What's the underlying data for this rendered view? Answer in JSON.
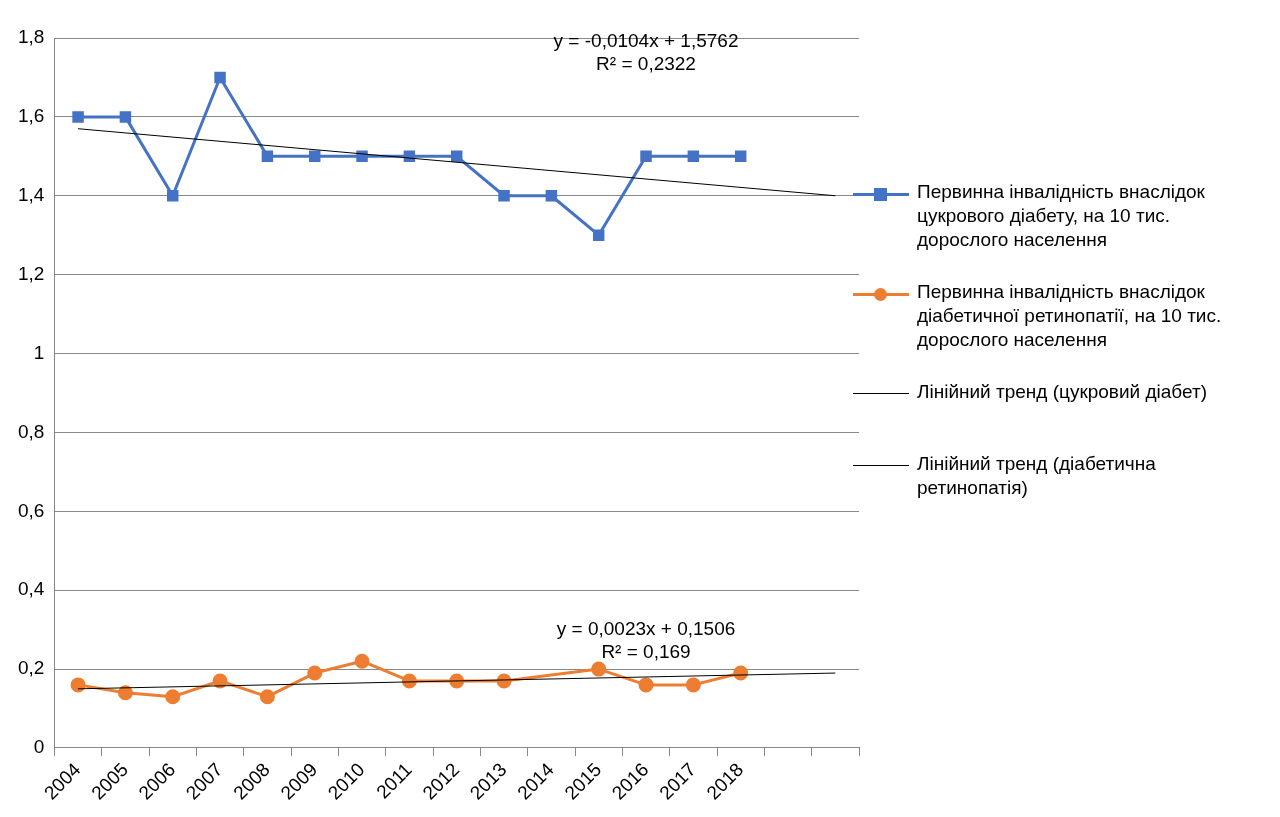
{
  "chart_data": {
    "type": "line",
    "categories": [
      "2004",
      "2005",
      "2006",
      "2007",
      "2008",
      "2009",
      "2010",
      "2011",
      "2012",
      "2013",
      "2014",
      "2015",
      "2016",
      "2017",
      "2018",
      null,
      null
    ],
    "series": [
      {
        "name": "Первинна інвалідність внаслідок цукрового діабету, на 10 тис. дорослого населення",
        "color": "#4472c4",
        "marker": "square",
        "values": [
          1.6,
          1.6,
          1.4,
          1.7,
          1.5,
          1.5,
          1.5,
          1.5,
          1.5,
          1.4,
          1.4,
          1.3,
          1.5,
          1.5,
          1.5,
          null,
          null
        ]
      },
      {
        "name": "Первинна інвалідність внаслідок діабетичної ретинопатії, на 10 тис. дорослого населення",
        "color": "#ed7d31",
        "marker": "circle",
        "values": [
          0.16,
          0.14,
          0.13,
          0.17,
          0.13,
          0.19,
          0.22,
          0.17,
          0.17,
          0.17,
          null,
          0.2,
          0.16,
          0.16,
          0.19,
          null,
          null
        ]
      },
      {
        "name": "Лінійний тренд (цукровий діабет)",
        "color": "#000000",
        "marker": "none",
        "values": [
          1.57,
          null,
          null,
          null,
          null,
          null,
          null,
          null,
          null,
          null,
          null,
          null,
          null,
          null,
          null,
          null,
          1.4
        ]
      },
      {
        "name": "Лінійний тренд (діабетична ретинопатія)",
        "color": "#000000",
        "marker": "none",
        "values": [
          0.15,
          null,
          null,
          null,
          null,
          null,
          null,
          null,
          null,
          null,
          null,
          null,
          null,
          null,
          null,
          null,
          0.19
        ]
      }
    ],
    "ylim": [
      0,
      1.8
    ],
    "yticks": [
      0,
      {
        "value": 0.2,
        "label": "0,2"
      },
      {
        "value": 0.4,
        "label": "0,4"
      },
      {
        "value": 0.6,
        "label": "0,6"
      },
      {
        "value": 0.8,
        "label": "0,8"
      },
      1,
      {
        "value": 1.2,
        "label": "1,2"
      },
      {
        "value": 1.4,
        "label": "1,4"
      },
      {
        "value": 1.6,
        "label": "1,6"
      },
      {
        "value": 1.8,
        "label": "1,8"
      }
    ],
    "grid": "y",
    "legend": "right",
    "annotations": [
      "y = -0,0104x + 1,5762\nR² = 0,2322",
      "y = 0,0023x + 0,1506\nR² = 0,169"
    ]
  }
}
